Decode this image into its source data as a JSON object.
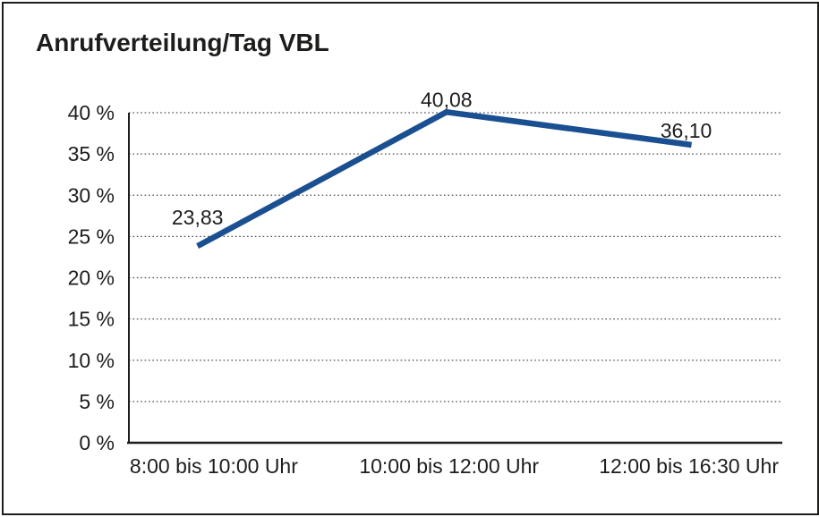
{
  "frame": {
    "background": "#ffffff",
    "border_color": "#1d1d1b"
  },
  "chart_data": {
    "type": "line",
    "title": "Anrufverteilung/Tag VBL",
    "categories": [
      "8:00 bis 10:00 Uhr",
      "10:00 bis 12:00 Uhr",
      "12:00 bis 16:30 Uhr"
    ],
    "series": [
      {
        "values": [
          23.83,
          40.08,
          36.1
        ],
        "data_labels": [
          "23,83",
          "40,08",
          "36,10"
        ],
        "color": "#1a5091"
      }
    ],
    "xlabel": "",
    "ylabel": "",
    "ylim": [
      0,
      40
    ],
    "y_tick_step": 5,
    "y_tick_labels": [
      "0 %",
      "5 %",
      "10 %",
      "15 %",
      "20 %",
      "25 %",
      "30 %",
      "35 %",
      "40 %"
    ],
    "grid": "horizontal-dotted",
    "grid_color": "#4d4d4d",
    "axis_color": "#1d1d1b",
    "text_color": "#1d1d1b",
    "legend": "none"
  }
}
